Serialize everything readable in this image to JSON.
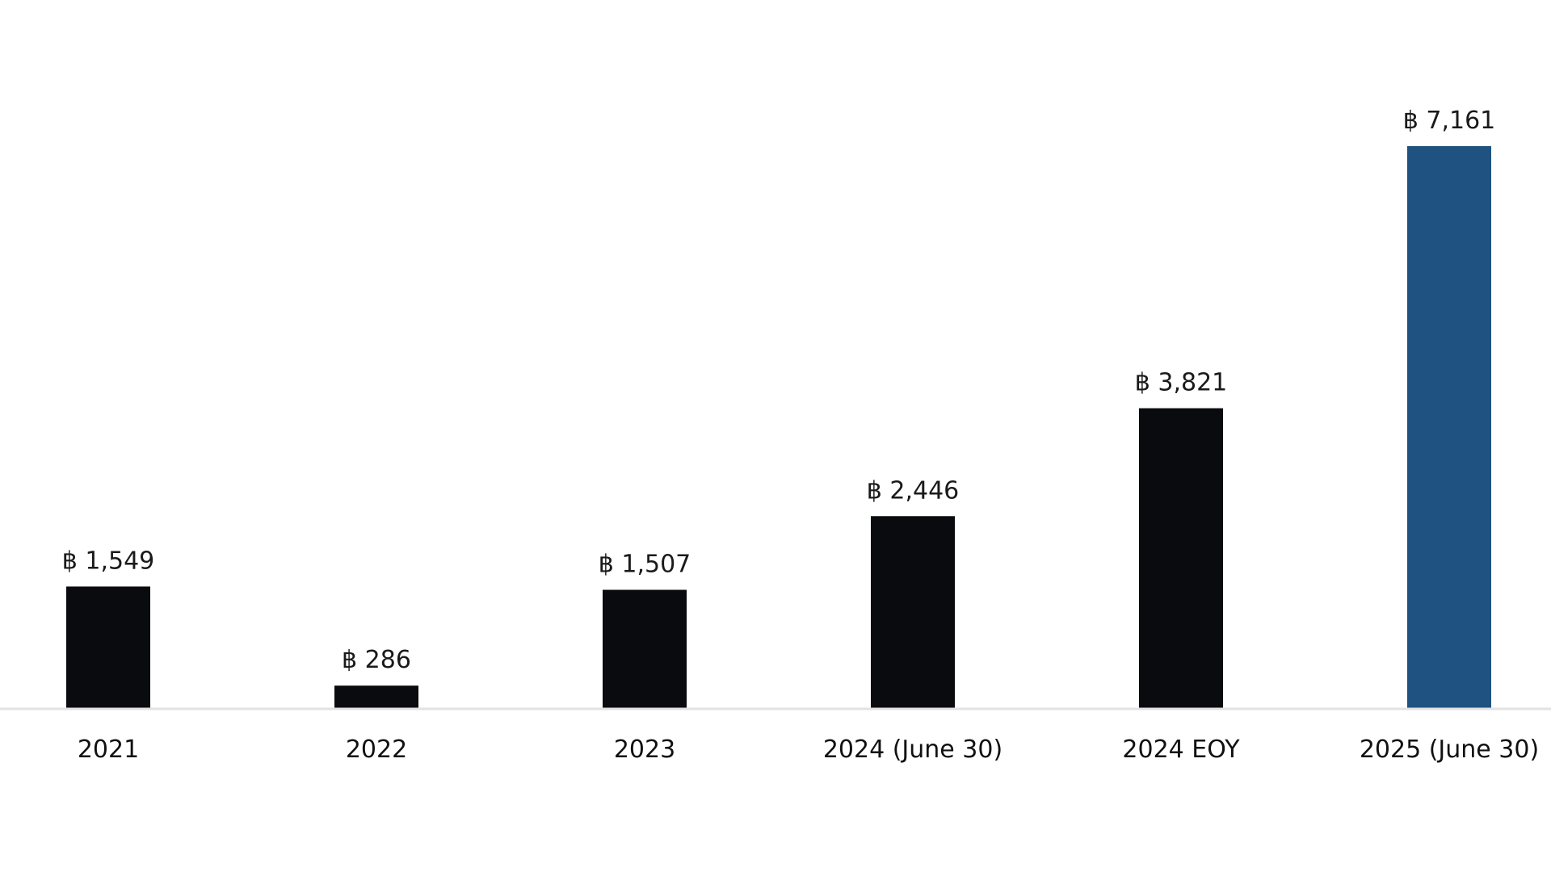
{
  "colors": {
    "bar_default": "#0a0b0e",
    "bar_highlight": "#1f5280",
    "axis_line": "#e2e2e2",
    "background": "#ffffff"
  },
  "chart_data": {
    "type": "bar",
    "title": "",
    "xlabel": "",
    "ylabel": "",
    "value_prefix": "฿",
    "categories": [
      "2021",
      "2022",
      "2023",
      "2024 (June 30)",
      "2024 EOY",
      "2025 (June 30)"
    ],
    "values": [
      1549,
      286,
      1507,
      2446,
      3821,
      7161
    ],
    "value_labels": [
      "฿ 1,549",
      "฿ 286",
      "฿ 1,507",
      "฿ 2,446",
      "฿ 3,821",
      "฿ 7,161"
    ],
    "highlight_index": 5,
    "ylim": [
      0,
      7161
    ],
    "grid": false,
    "legend": "none"
  }
}
